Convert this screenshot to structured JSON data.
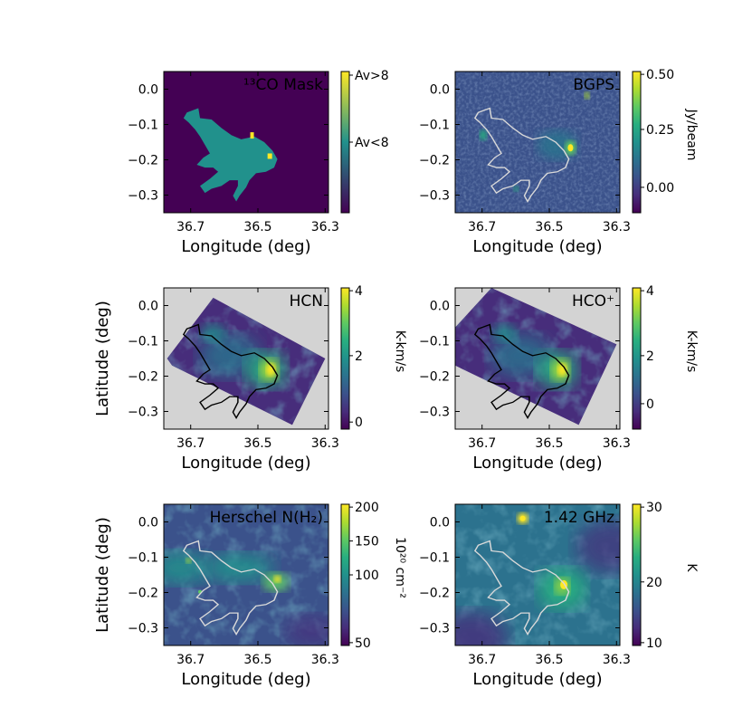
{
  "palette": [
    "#440154",
    "#472d7b",
    "#3b528b",
    "#2c728e",
    "#21918c",
    "#28ae80",
    "#5ec962",
    "#addc30",
    "#fde725"
  ],
  "colors": {
    "mask_bg": "#440154",
    "mask_fill": "#21918c",
    "mask_hot": "#fde725",
    "nodata": "#d3d3d3",
    "contour_light": "#d9d9d9",
    "contour_dark": "#000000"
  },
  "chart_data": [
    {
      "type": "heatmap",
      "title": "¹³CO Mask",
      "xlabel": "Longitude (deg)",
      "ylabel": "",
      "xlim": [
        36.78,
        36.29
      ],
      "ylim": [
        -0.35,
        0.05
      ],
      "xticks": [
        "36.7",
        "36.5",
        "36.3"
      ],
      "yticks": [
        "0.0",
        "−0.1",
        "−0.2",
        "−0.3"
      ],
      "colorbar": {
        "labels": [
          "Av>8",
          "Av<8"
        ],
        "unit": ""
      },
      "overlay": "none"
    },
    {
      "type": "heatmap",
      "title": "BGPS",
      "xlabel": "Longitude (deg)",
      "ylabel": "",
      "xlim": [
        36.78,
        36.29
      ],
      "ylim": [
        -0.35,
        0.05
      ],
      "xticks": [
        "36.7",
        "36.5",
        "36.3"
      ],
      "yticks": [
        "0.0",
        "−0.1",
        "−0.2",
        "−0.3"
      ],
      "colorbar": {
        "ticks": [
          "0.50",
          "0.25",
          "0.00"
        ],
        "unit": "Jy/beam"
      },
      "overlay": "light"
    },
    {
      "type": "heatmap",
      "title": "HCN",
      "xlabel": "Longitude (deg)",
      "ylabel": "Latitude (deg)",
      "xlim": [
        36.78,
        36.29
      ],
      "ylim": [
        -0.35,
        0.05
      ],
      "xticks": [
        "36.7",
        "36.5",
        "36.3"
      ],
      "yticks": [
        "0.0",
        "−0.1",
        "−0.2",
        "−0.3"
      ],
      "colorbar": {
        "ticks": [
          "4",
          "2",
          "0"
        ],
        "unit": "K-km/s"
      },
      "overlay": "dark"
    },
    {
      "type": "heatmap",
      "title": "HCO⁺",
      "xlabel": "Longitude (deg)",
      "ylabel": "",
      "xlim": [
        36.78,
        36.29
      ],
      "ylim": [
        -0.35,
        0.05
      ],
      "xticks": [
        "36.7",
        "36.5",
        "36.3"
      ],
      "yticks": [
        "0.0",
        "−0.1",
        "−0.2",
        "−0.3"
      ],
      "colorbar": {
        "ticks": [
          "4",
          "2",
          "0"
        ],
        "unit": "K-km/s"
      },
      "overlay": "dark"
    },
    {
      "type": "heatmap",
      "title": "Herschel N(H₂)",
      "xlabel": "Longitude (deg)",
      "ylabel": "Latitude (deg)",
      "xlim": [
        36.78,
        36.29
      ],
      "ylim": [
        -0.35,
        0.05
      ],
      "xticks": [
        "36.7",
        "36.5",
        "36.3"
      ],
      "yticks": [
        "0.0",
        "−0.1",
        "−0.2",
        "−0.3"
      ],
      "colorbar": {
        "ticks": [
          "200",
          "150",
          "100",
          "50"
        ],
        "unit": "10²⁰ cm⁻²"
      },
      "overlay": "light"
    },
    {
      "type": "heatmap",
      "title": "1.42 GHz",
      "xlabel": "Longitude (deg)",
      "ylabel": "",
      "xlim": [
        36.78,
        36.29
      ],
      "ylim": [
        -0.35,
        0.05
      ],
      "xticks": [
        "36.7",
        "36.5",
        "36.3"
      ],
      "yticks": [
        "0.0",
        "−0.1",
        "−0.2",
        "−0.3"
      ],
      "colorbar": {
        "ticks": [
          "30",
          "20",
          "10"
        ],
        "unit": "K"
      },
      "overlay": "light"
    }
  ]
}
